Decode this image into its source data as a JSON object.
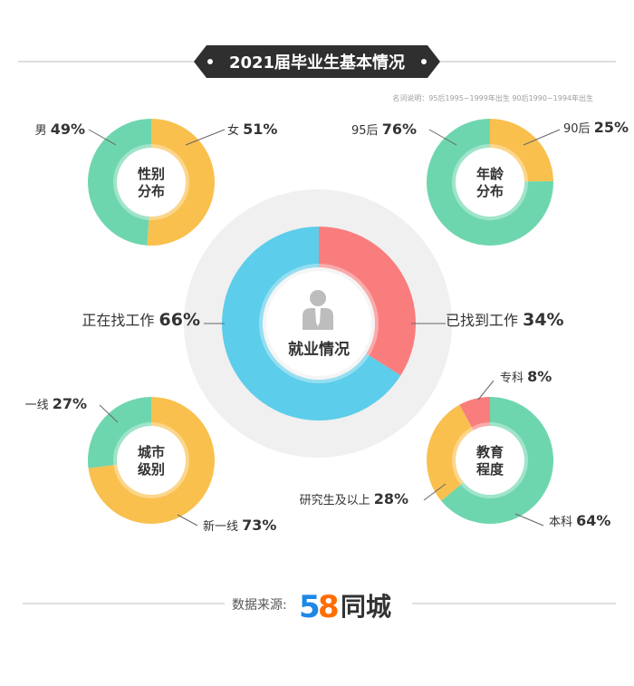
{
  "header": {
    "title": "2021届毕业生基本情况",
    "note": "名词说明：95后1995~1999年出生  90后1990~1994年出生"
  },
  "footer": {
    "source_label": "数据来源:",
    "brand_num_5": "5",
    "brand_num_8": "8",
    "brand_text": "同城"
  },
  "colors": {
    "orange": "#F9C04E",
    "green": "#6ED6AE",
    "blue": "#5CCDEA",
    "red": "#F97D7D",
    "header_bg": "#2F2F2F",
    "logo_blue": "#1E88E5",
    "logo_orange": "#FF6D00",
    "logo_green": "#43A047",
    "logo_red": "#E53935"
  },
  "icons": {
    "person": "person-icon"
  },
  "chart_data": [
    {
      "type": "pie",
      "id": "gender",
      "center_line1": "性别",
      "center_line2": "分布",
      "slices": [
        {
          "name": "女",
          "value": 51,
          "pct_label": "51%",
          "color": "#F9C04E"
        },
        {
          "name": "男",
          "value": 49,
          "pct_label": "49%",
          "color": "#6ED6AE"
        }
      ]
    },
    {
      "type": "pie",
      "id": "age",
      "center_line1": "年龄",
      "center_line2": "分布",
      "slices": [
        {
          "name": "90后",
          "value": 25,
          "pct_label": "25%",
          "color": "#F9C04E"
        },
        {
          "name": "95后",
          "value": 76,
          "pct_label": "76%",
          "color": "#6ED6AE"
        }
      ]
    },
    {
      "type": "pie",
      "id": "employment",
      "center_line1": "就业情况",
      "center_line2": "",
      "slices": [
        {
          "name": "已找到工作",
          "value": 34,
          "pct_label": "34%",
          "color": "#F97D7D"
        },
        {
          "name": "正在找工作",
          "value": 66,
          "pct_label": "66%",
          "color": "#5CCDEA"
        }
      ]
    },
    {
      "type": "pie",
      "id": "city",
      "center_line1": "城市",
      "center_line2": "级别",
      "slices": [
        {
          "name": "新一线",
          "value": 73,
          "pct_label": "73%",
          "color": "#F9C04E"
        },
        {
          "name": "一线",
          "value": 27,
          "pct_label": "27%",
          "color": "#6ED6AE"
        }
      ]
    },
    {
      "type": "pie",
      "id": "education",
      "center_line1": "教育",
      "center_line2": "程度",
      "slices": [
        {
          "name": "本科",
          "value": 64,
          "pct_label": "64%",
          "color": "#6ED6AE"
        },
        {
          "name": "研究生及以上",
          "value": 28,
          "pct_label": "28%",
          "color": "#F9C04E"
        },
        {
          "name": "专科",
          "value": 8,
          "pct_label": "8%",
          "color": "#F97D7D"
        }
      ]
    }
  ]
}
